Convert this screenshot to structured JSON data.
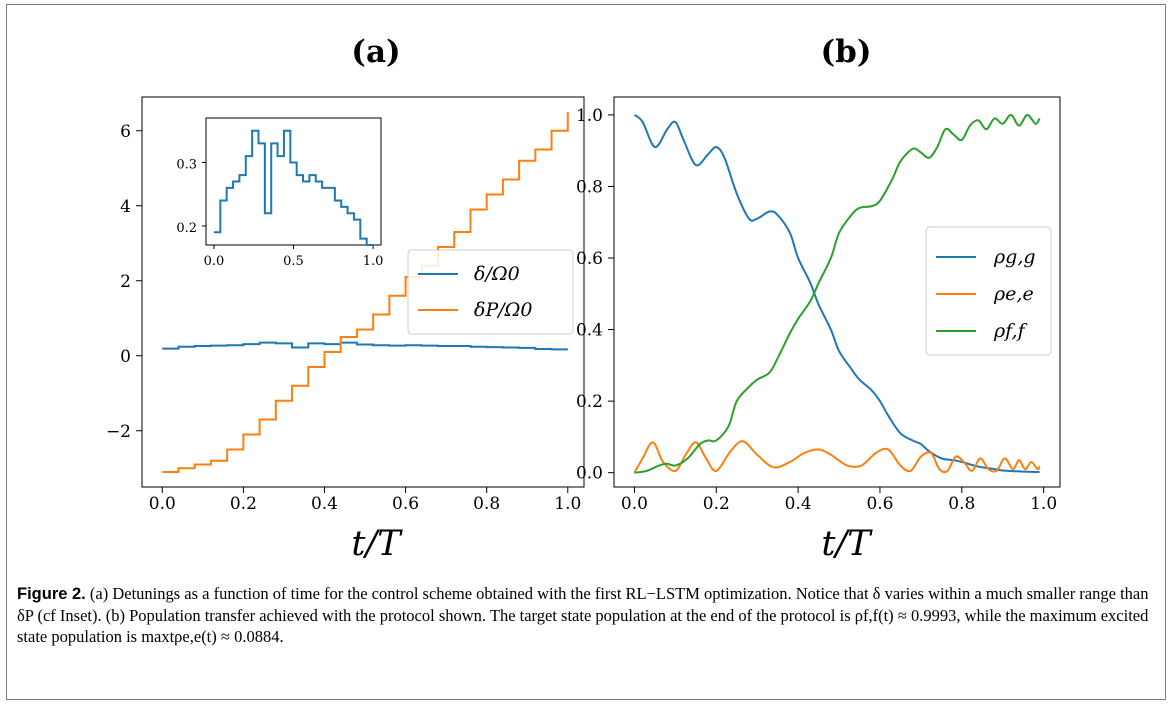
{
  "colors": {
    "blue": "#1f77b4",
    "orange": "#ff7f0e",
    "green": "#2ca02c"
  },
  "caption": {
    "label": "Figure 2.",
    "text": "(a) Detunings as a function of time for the control scheme obtained with the first RL−LSTM optimization. Notice that δ varies within a much smaller range than δP (cf Inset). (b) Population transfer achieved with the protocol shown. The target state population at the end of the protocol is ρf,f(t) ≈ 0.9993, while the maximum excited state population is maxtρe,e(t) ≈ 0.0884."
  },
  "chart_data": [
    {
      "panel_label": "(a)",
      "type": "line",
      "xlabel": "t/T",
      "ylabel": "",
      "xlim": [
        -0.05,
        1.04
      ],
      "ylim": [
        -3.5,
        6.9
      ],
      "xticks": [
        "0.0",
        "0.2",
        "0.4",
        "0.6",
        "0.8",
        "1.0"
      ],
      "xtick_values": [
        0.0,
        0.2,
        0.4,
        0.6,
        0.8,
        1.0
      ],
      "yticks": [
        "−2",
        "0",
        "2",
        "4",
        "6"
      ],
      "ytick_values": [
        -2,
        0,
        2,
        4,
        6
      ],
      "legend_position": "center-right",
      "series": [
        {
          "name": "δ/Ω0",
          "color": "#1f77b4",
          "step": true,
          "x": [
            0.0,
            0.02,
            0.04,
            0.06,
            0.08,
            0.1,
            0.12,
            0.14,
            0.16,
            0.18,
            0.2,
            0.22,
            0.24,
            0.26,
            0.28,
            0.3,
            0.32,
            0.34,
            0.36,
            0.38,
            0.4,
            0.42,
            0.44,
            0.46,
            0.48,
            0.5,
            0.52,
            0.54,
            0.56,
            0.58,
            0.6,
            0.62,
            0.64,
            0.66,
            0.68,
            0.7,
            0.72,
            0.74,
            0.76,
            0.78,
            0.8,
            0.82,
            0.84,
            0.86,
            0.88,
            0.9,
            0.92,
            0.94,
            0.96,
            0.98,
            1.0
          ],
          "y": [
            0.19,
            0.19,
            0.24,
            0.24,
            0.26,
            0.26,
            0.27,
            0.27,
            0.28,
            0.28,
            0.31,
            0.31,
            0.35,
            0.35,
            0.33,
            0.33,
            0.22,
            0.22,
            0.33,
            0.33,
            0.31,
            0.31,
            0.35,
            0.35,
            0.3,
            0.3,
            0.28,
            0.28,
            0.27,
            0.27,
            0.28,
            0.28,
            0.27,
            0.27,
            0.26,
            0.26,
            0.26,
            0.26,
            0.24,
            0.24,
            0.23,
            0.23,
            0.22,
            0.22,
            0.21,
            0.21,
            0.18,
            0.18,
            0.17,
            0.17,
            0.17
          ]
        },
        {
          "name": "δP/Ω0",
          "color": "#ff7f0e",
          "step": true,
          "x": [
            0.0,
            0.04,
            0.08,
            0.12,
            0.16,
            0.2,
            0.24,
            0.28,
            0.32,
            0.36,
            0.4,
            0.44,
            0.48,
            0.52,
            0.56,
            0.6,
            0.64,
            0.68,
            0.72,
            0.76,
            0.8,
            0.84,
            0.88,
            0.92,
            0.96,
            1.0
          ],
          "y": [
            -3.1,
            -3.0,
            -2.9,
            -2.8,
            -2.5,
            -2.1,
            -1.7,
            -1.2,
            -0.8,
            -0.3,
            0.1,
            0.5,
            0.7,
            1.1,
            1.6,
            2.1,
            2.4,
            2.9,
            3.3,
            3.9,
            4.3,
            4.7,
            5.2,
            5.5,
            6.0,
            6.5
          ]
        }
      ],
      "inset": {
        "type": "line",
        "xlim": [
          -0.05,
          1.05
        ],
        "ylim": [
          0.17,
          0.37
        ],
        "xticks": [
          "0.0",
          "0.5",
          "1.0"
        ],
        "xtick_values": [
          0.0,
          0.5,
          1.0
        ],
        "yticks": [
          "0.2",
          "0.3"
        ],
        "ytick_values": [
          0.2,
          0.3
        ],
        "series_ref": "δ/Ω0"
      }
    },
    {
      "panel_label": "(b)",
      "type": "line",
      "xlabel": "t/T",
      "ylabel": "",
      "xlim": [
        -0.05,
        1.04
      ],
      "ylim": [
        -0.04,
        1.05
      ],
      "xticks": [
        "0.0",
        "0.2",
        "0.4",
        "0.6",
        "0.8",
        "1.0"
      ],
      "xtick_values": [
        0.0,
        0.2,
        0.4,
        0.6,
        0.8,
        1.0
      ],
      "yticks": [
        "0.0",
        "0.2",
        "0.4",
        "0.6",
        "0.8",
        "1.0"
      ],
      "ytick_values": [
        0.0,
        0.2,
        0.4,
        0.6,
        0.8,
        1.0
      ],
      "legend_position": "center-right",
      "series": [
        {
          "name": "ρg,g",
          "color": "#1f77b4",
          "x": [
            0.0,
            0.02,
            0.05,
            0.08,
            0.1,
            0.12,
            0.15,
            0.18,
            0.2,
            0.22,
            0.25,
            0.28,
            0.3,
            0.33,
            0.35,
            0.38,
            0.4,
            0.43,
            0.45,
            0.48,
            0.5,
            0.53,
            0.55,
            0.58,
            0.6,
            0.62,
            0.65,
            0.68,
            0.7,
            0.72,
            0.75,
            0.78,
            0.8,
            0.83,
            0.85,
            0.88,
            0.9,
            0.93,
            0.95,
            0.98,
            0.99
          ],
          "y": [
            1.0,
            0.98,
            0.91,
            0.96,
            0.98,
            0.93,
            0.86,
            0.89,
            0.91,
            0.88,
            0.78,
            0.71,
            0.71,
            0.73,
            0.72,
            0.67,
            0.6,
            0.53,
            0.47,
            0.4,
            0.34,
            0.29,
            0.26,
            0.23,
            0.2,
            0.16,
            0.11,
            0.09,
            0.08,
            0.06,
            0.04,
            0.035,
            0.03,
            0.02,
            0.015,
            0.01,
            0.006,
            0.004,
            0.003,
            0.002,
            0.002
          ]
        },
        {
          "name": "ρe,e",
          "color": "#ff7f0e",
          "x": [
            0.0,
            0.02,
            0.045,
            0.07,
            0.1,
            0.125,
            0.15,
            0.175,
            0.2,
            0.235,
            0.265,
            0.3,
            0.34,
            0.38,
            0.415,
            0.45,
            0.48,
            0.52,
            0.555,
            0.59,
            0.62,
            0.65,
            0.675,
            0.7,
            0.725,
            0.745,
            0.765,
            0.785,
            0.805,
            0.825,
            0.845,
            0.865,
            0.885,
            0.905,
            0.925,
            0.94,
            0.955,
            0.97,
            0.985,
            0.99
          ],
          "y": [
            0.0,
            0.04,
            0.085,
            0.03,
            0.005,
            0.05,
            0.085,
            0.04,
            0.005,
            0.06,
            0.088,
            0.05,
            0.015,
            0.03,
            0.055,
            0.065,
            0.05,
            0.02,
            0.02,
            0.055,
            0.065,
            0.02,
            0.005,
            0.045,
            0.055,
            0.01,
            0.005,
            0.045,
            0.03,
            0.005,
            0.04,
            0.01,
            0.005,
            0.04,
            0.01,
            0.035,
            0.01,
            0.03,
            0.01,
            0.018
          ]
        },
        {
          "name": "ρf,f",
          "color": "#2ca02c",
          "x": [
            0.0,
            0.03,
            0.06,
            0.08,
            0.1,
            0.13,
            0.16,
            0.18,
            0.2,
            0.23,
            0.25,
            0.28,
            0.3,
            0.33,
            0.35,
            0.38,
            0.4,
            0.43,
            0.45,
            0.48,
            0.5,
            0.53,
            0.55,
            0.58,
            0.6,
            0.63,
            0.65,
            0.68,
            0.7,
            0.72,
            0.74,
            0.76,
            0.78,
            0.8,
            0.82,
            0.84,
            0.86,
            0.88,
            0.9,
            0.92,
            0.94,
            0.96,
            0.98,
            0.99
          ],
          "y": [
            0.0,
            0.005,
            0.02,
            0.025,
            0.02,
            0.04,
            0.08,
            0.09,
            0.09,
            0.13,
            0.2,
            0.24,
            0.26,
            0.28,
            0.32,
            0.39,
            0.43,
            0.48,
            0.53,
            0.6,
            0.67,
            0.72,
            0.74,
            0.745,
            0.76,
            0.82,
            0.87,
            0.905,
            0.895,
            0.88,
            0.91,
            0.96,
            0.945,
            0.93,
            0.97,
            0.985,
            0.96,
            0.99,
            0.975,
            1.0,
            0.97,
            1.0,
            0.975,
            0.99
          ]
        }
      ]
    }
  ]
}
